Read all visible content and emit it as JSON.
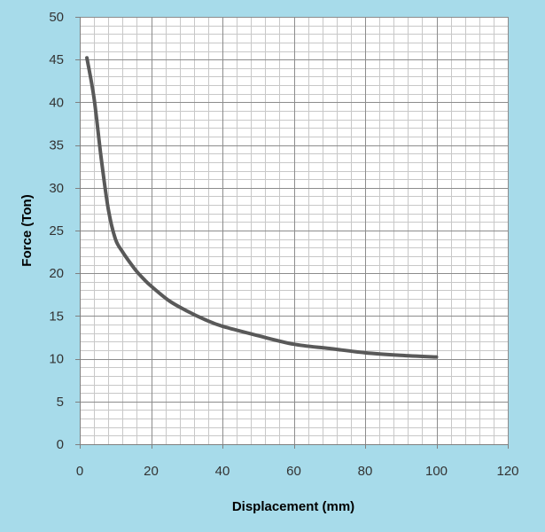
{
  "chart_data": {
    "type": "line",
    "xlabel": "Displacement (mm)",
    "ylabel": "Force  (Ton)",
    "xlim": [
      0,
      120
    ],
    "ylim": [
      0,
      50
    ],
    "x_ticks": [
      "0",
      "20",
      "40",
      "60",
      "80",
      "100",
      "120"
    ],
    "y_ticks": [
      "0",
      "5",
      "10",
      "15",
      "20",
      "25",
      "30",
      "35",
      "40",
      "45",
      "50"
    ],
    "grid": true,
    "minor_grid": true,
    "series": [
      {
        "x": [
          2,
          4,
          6,
          8,
          10,
          12,
          14,
          16,
          18,
          20,
          25,
          30,
          35,
          40,
          50,
          60,
          70,
          80,
          90,
          100
        ],
        "y": [
          45.2,
          40.5,
          33.5,
          27.5,
          24.0,
          22.5,
          21.3,
          20.2,
          19.3,
          18.5,
          16.8,
          15.6,
          14.6,
          13.8,
          12.7,
          11.7,
          11.2,
          10.7,
          10.4,
          10.2
        ]
      }
    ],
    "colors": {
      "background": "#a7dbea",
      "plot_area": "#ffffff",
      "line": "#595959",
      "major_grid": "#8c8c8c",
      "minor_grid": "#c8c8c8"
    }
  }
}
